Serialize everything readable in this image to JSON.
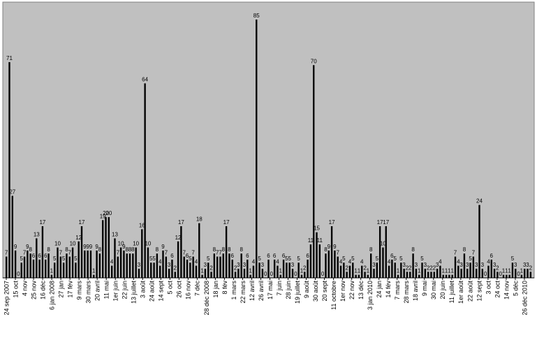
{
  "chart_data": {
    "type": "bar",
    "title": "",
    "xlabel": "",
    "ylabel": "",
    "ylim": [
      0,
      90
    ],
    "grid": false,
    "legend": "none",
    "colors": {
      "plot_bg": "#c0c0c0",
      "bar": "#000000",
      "frame": "#808080",
      "page_bg": "#ffffff"
    },
    "values": [
      7,
      71,
      27,
      9,
      0,
      5,
      7,
      9,
      8,
      6,
      13,
      6,
      17,
      6,
      8,
      1,
      5,
      10,
      7,
      5,
      8,
      7,
      10,
      5,
      12,
      17,
      9,
      9,
      9,
      1,
      9,
      8,
      19,
      20,
      20,
      4,
      13,
      7,
      10,
      9,
      8,
      8,
      8,
      10,
      3,
      16,
      64,
      10,
      5,
      5,
      8,
      4,
      9,
      7,
      3,
      6,
      2,
      12,
      17,
      7,
      6,
      5,
      7,
      4,
      18,
      1,
      3,
      5,
      2,
      8,
      7,
      7,
      8,
      17,
      8,
      6,
      2,
      3,
      8,
      3,
      6,
      1,
      4,
      85,
      5,
      3,
      0,
      6,
      0,
      6,
      4,
      1,
      6,
      5,
      5,
      3,
      0,
      5,
      1,
      2,
      6,
      11,
      70,
      15,
      11,
      0,
      8,
      9,
      17,
      9,
      7,
      4,
      5,
      2,
      4,
      5,
      1,
      1,
      4,
      2,
      1,
      8,
      3,
      5,
      17,
      10,
      17,
      4,
      6,
      5,
      1,
      5,
      3,
      2,
      2,
      8,
      3,
      1,
      5,
      3,
      2,
      2,
      2,
      3,
      4,
      1,
      1,
      1,
      1,
      7,
      4,
      3,
      8,
      3,
      5,
      7,
      3,
      24,
      3,
      0,
      4,
      6,
      3,
      2,
      0,
      1,
      1,
      1,
      5,
      3,
      0,
      1,
      3,
      3,
      2
    ],
    "tick_labels": [
      "24 sep 2007",
      "15 oct",
      "4 nov",
      "25 nov",
      "16 déc",
      "6 jan 2008",
      "27 jan",
      "17 fév",
      "9 mars",
      "30 mars",
      "20 avril",
      "11 mai",
      "1er juin",
      "22 juin",
      "13 juillet",
      "3 août",
      "24 août",
      "14 sept",
      "5 oct",
      "26 oct",
      "16 nov",
      "7 déc",
      "28 déc 2008",
      "18 jan",
      "8 fév",
      "1 mars",
      "22 mars",
      "12 avril",
      "26 avril",
      "17 mai",
      "7 juin",
      "28 juin",
      "19 juillet",
      "9 août",
      "30 août",
      "20 sept",
      "11 octobre",
      "1er nov",
      "22 nov",
      "13 déc",
      "3 jan 2010",
      "24 jan",
      "14 fév",
      "7 mars",
      "28 mars",
      "18 avril",
      "9 mai",
      "30 mai",
      "20 juin",
      "11 juillet",
      "1er août",
      "22 août",
      "12 sept",
      "3 oct",
      "24 oct",
      "14 nov",
      "5 déc",
      "26 déc 2010"
    ]
  }
}
